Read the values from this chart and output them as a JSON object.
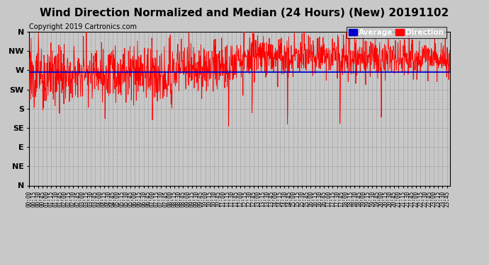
{
  "title": "Wind Direction Normalized and Median (24 Hours) (New) 20191102",
  "copyright": "Copyright 2019 Cartronics.com",
  "ytick_labels": [
    "N",
    "NW",
    "W",
    "SW",
    "S",
    "SE",
    "E",
    "NE",
    "N"
  ],
  "ytick_values": [
    0,
    45,
    90,
    135,
    180,
    225,
    270,
    315,
    360
  ],
  "ylim": [
    360,
    0
  ],
  "xlim_minutes": [
    0,
    1435
  ],
  "avg_direction_value": 95,
  "legend_avg_label": "Average",
  "legend_dir_label": "Direction",
  "bg_color": "#c8c8c8",
  "plot_bg_color": "#c8c8c8",
  "red_color": "#ff0000",
  "blue_color": "#0000cc",
  "black_color": "#000000",
  "title_fontsize": 11,
  "copyright_fontsize": 7,
  "tick_fontsize": 8,
  "grid_color": "#999999",
  "grid_linestyle": "--",
  "avg_label_bg": "#0000cc",
  "dir_label_bg": "#ff0000"
}
